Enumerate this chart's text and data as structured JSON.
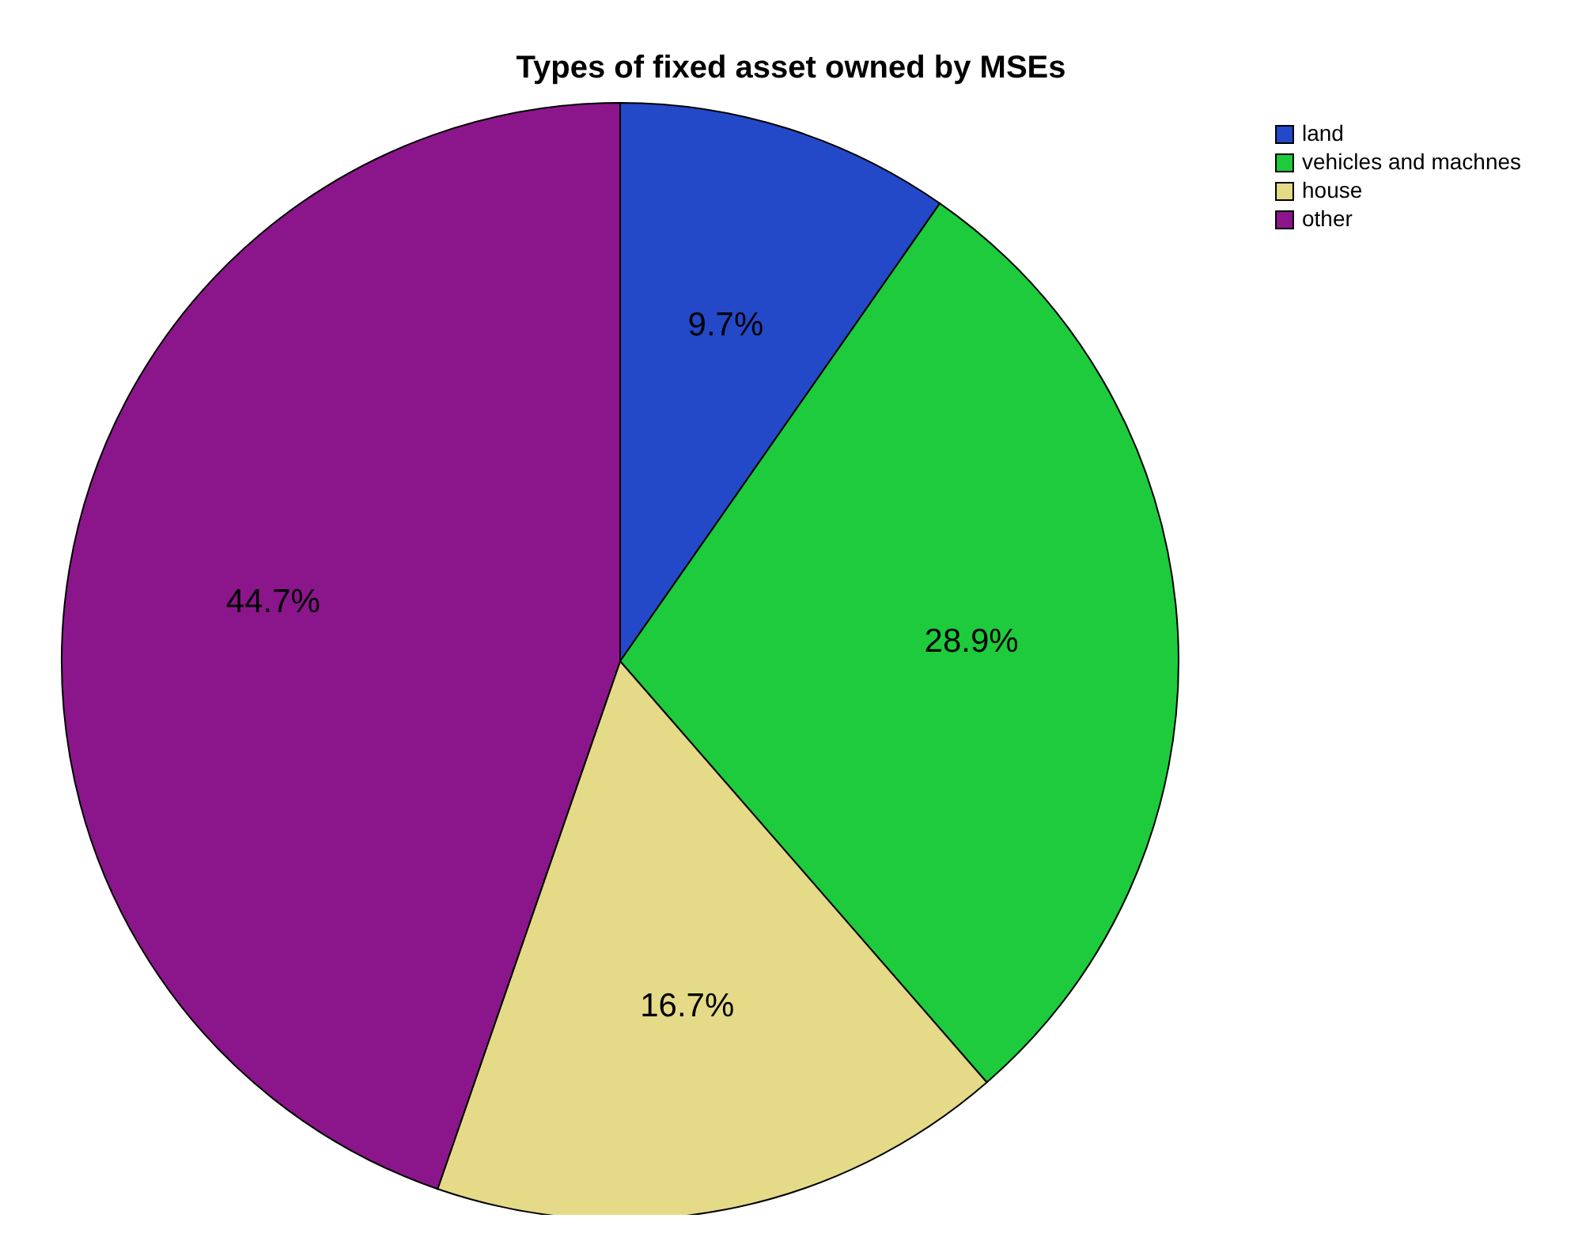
{
  "chart_data": {
    "type": "pie",
    "title": "Types of fixed asset owned by MSEs",
    "categories": [
      "land",
      "vehicles and machnes",
      "house",
      "other"
    ],
    "values": [
      9.7,
      28.9,
      16.7,
      44.7
    ],
    "colors": [
      "#2349c8",
      "#1dcb3c",
      "#e4da88",
      "#8b168b"
    ],
    "value_labels": [
      "9.7%",
      "28.9%",
      "16.7%",
      "44.7%"
    ],
    "legend": "top right"
  }
}
